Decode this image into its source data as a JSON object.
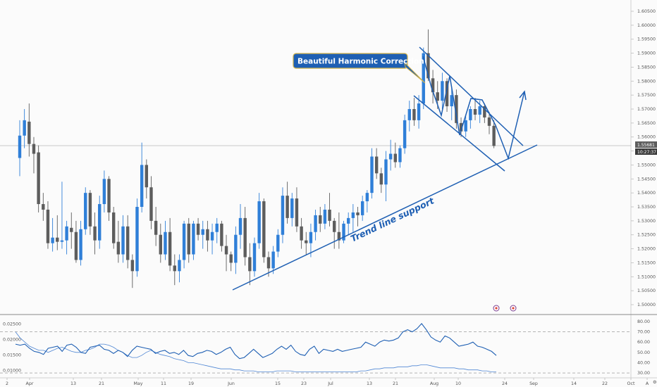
{
  "chart_data": {
    "type": "candlestick",
    "price_axis": {
      "ticks": [
        "1.60500",
        "1.60000",
        "1.59500",
        "1.59000",
        "1.58500",
        "1.58000",
        "1.57500",
        "1.57000",
        "1.56500",
        "1.56000",
        "1.55500",
        "1.55000",
        "1.54500",
        "1.54000",
        "1.53500",
        "1.53000",
        "1.52500",
        "1.52000",
        "1.51500",
        "1.51000",
        "1.50500",
        "1.50000"
      ],
      "range": [
        1.4975,
        1.6075
      ]
    },
    "current_price": {
      "value": 1.55681,
      "label": "1.55681",
      "countdown": "10:27:37"
    },
    "x_axis_labels": [
      "2",
      "Apr",
      "13",
      "21",
      "May",
      "11",
      "19",
      "Jun",
      "15",
      "23",
      "Jul",
      "13",
      "21",
      "Aug",
      "10",
      "24",
      "Sep",
      "14",
      "22",
      "Oct",
      "A"
    ],
    "candles": [
      {
        "o": 1.5525,
        "h": 1.566,
        "l": 1.546,
        "c": 1.5605
      },
      {
        "o": 1.5605,
        "h": 1.57,
        "l": 1.556,
        "c": 1.566
      },
      {
        "o": 1.5655,
        "h": 1.572,
        "l": 1.553,
        "c": 1.5575
      },
      {
        "o": 1.5575,
        "h": 1.56,
        "l": 1.547,
        "c": 1.554
      },
      {
        "o": 1.5545,
        "h": 1.557,
        "l": 1.533,
        "c": 1.536
      },
      {
        "o": 1.536,
        "h": 1.54,
        "l": 1.53,
        "c": 1.534
      },
      {
        "o": 1.534,
        "h": 1.537,
        "l": 1.52,
        "c": 1.522
      },
      {
        "o": 1.522,
        "h": 1.531,
        "l": 1.519,
        "c": 1.524
      },
      {
        "o": 1.524,
        "h": 1.532,
        "l": 1.5195,
        "c": 1.5225
      },
      {
        "o": 1.5225,
        "h": 1.544,
        "l": 1.52,
        "c": 1.523
      },
      {
        "o": 1.523,
        "h": 1.53,
        "l": 1.518,
        "c": 1.528
      },
      {
        "o": 1.5275,
        "h": 1.533,
        "l": 1.52,
        "c": 1.526
      },
      {
        "o": 1.526,
        "h": 1.53,
        "l": 1.515,
        "c": 1.516
      },
      {
        "o": 1.516,
        "h": 1.53,
        "l": 1.514,
        "c": 1.527
      },
      {
        "o": 1.527,
        "h": 1.542,
        "l": 1.525,
        "c": 1.54
      },
      {
        "o": 1.54,
        "h": 1.541,
        "l": 1.525,
        "c": 1.528
      },
      {
        "o": 1.528,
        "h": 1.533,
        "l": 1.518,
        "c": 1.523
      },
      {
        "o": 1.523,
        "h": 1.539,
        "l": 1.52,
        "c": 1.536
      },
      {
        "o": 1.536,
        "h": 1.548,
        "l": 1.533,
        "c": 1.545
      },
      {
        "o": 1.545,
        "h": 1.546,
        "l": 1.53,
        "c": 1.533
      },
      {
        "o": 1.533,
        "h": 1.535,
        "l": 1.52,
        "c": 1.522
      },
      {
        "o": 1.5225,
        "h": 1.53,
        "l": 1.515,
        "c": 1.518
      },
      {
        "o": 1.518,
        "h": 1.532,
        "l": 1.515,
        "c": 1.528
      },
      {
        "o": 1.528,
        "h": 1.532,
        "l": 1.513,
        "c": 1.516
      },
      {
        "o": 1.516,
        "h": 1.518,
        "l": 1.506,
        "c": 1.512
      },
      {
        "o": 1.512,
        "h": 1.538,
        "l": 1.51,
        "c": 1.535
      },
      {
        "o": 1.535,
        "h": 1.558,
        "l": 1.533,
        "c": 1.55
      },
      {
        "o": 1.55,
        "h": 1.552,
        "l": 1.538,
        "c": 1.542
      },
      {
        "o": 1.542,
        "h": 1.546,
        "l": 1.527,
        "c": 1.53
      },
      {
        "o": 1.53,
        "h": 1.535,
        "l": 1.521,
        "c": 1.525
      },
      {
        "o": 1.525,
        "h": 1.529,
        "l": 1.515,
        "c": 1.518
      },
      {
        "o": 1.518,
        "h": 1.53,
        "l": 1.516,
        "c": 1.526
      },
      {
        "o": 1.526,
        "h": 1.531,
        "l": 1.512,
        "c": 1.514
      },
      {
        "o": 1.514,
        "h": 1.518,
        "l": 1.507,
        "c": 1.512
      },
      {
        "o": 1.512,
        "h": 1.518,
        "l": 1.508,
        "c": 1.516
      },
      {
        "o": 1.516,
        "h": 1.53,
        "l": 1.513,
        "c": 1.529
      },
      {
        "o": 1.529,
        "h": 1.531,
        "l": 1.515,
        "c": 1.518
      },
      {
        "o": 1.518,
        "h": 1.53,
        "l": 1.516,
        "c": 1.529
      },
      {
        "o": 1.529,
        "h": 1.531,
        "l": 1.523,
        "c": 1.525
      },
      {
        "o": 1.525,
        "h": 1.53,
        "l": 1.52,
        "c": 1.527
      },
      {
        "o": 1.527,
        "h": 1.53,
        "l": 1.519,
        "c": 1.523
      },
      {
        "o": 1.523,
        "h": 1.529,
        "l": 1.518,
        "c": 1.526
      },
      {
        "o": 1.526,
        "h": 1.531,
        "l": 1.522,
        "c": 1.529
      },
      {
        "o": 1.529,
        "h": 1.53,
        "l": 1.519,
        "c": 1.521
      },
      {
        "o": 1.521,
        "h": 1.525,
        "l": 1.512,
        "c": 1.518
      },
      {
        "o": 1.518,
        "h": 1.519,
        "l": 1.512,
        "c": 1.515
      },
      {
        "o": 1.515,
        "h": 1.528,
        "l": 1.511,
        "c": 1.525
      },
      {
        "o": 1.525,
        "h": 1.536,
        "l": 1.52,
        "c": 1.531
      },
      {
        "o": 1.531,
        "h": 1.535,
        "l": 1.514,
        "c": 1.517
      },
      {
        "o": 1.517,
        "h": 1.522,
        "l": 1.507,
        "c": 1.512
      },
      {
        "o": 1.512,
        "h": 1.524,
        "l": 1.51,
        "c": 1.522
      },
      {
        "o": 1.522,
        "h": 1.54,
        "l": 1.52,
        "c": 1.537
      },
      {
        "o": 1.537,
        "h": 1.538,
        "l": 1.515,
        "c": 1.517
      },
      {
        "o": 1.517,
        "h": 1.519,
        "l": 1.51,
        "c": 1.513
      },
      {
        "o": 1.513,
        "h": 1.521,
        "l": 1.511,
        "c": 1.519
      },
      {
        "o": 1.519,
        "h": 1.527,
        "l": 1.517,
        "c": 1.525
      },
      {
        "o": 1.525,
        "h": 1.542,
        "l": 1.522,
        "c": 1.539
      },
      {
        "o": 1.539,
        "h": 1.544,
        "l": 1.529,
        "c": 1.531
      },
      {
        "o": 1.531,
        "h": 1.54,
        "l": 1.528,
        "c": 1.538
      },
      {
        "o": 1.538,
        "h": 1.542,
        "l": 1.526,
        "c": 1.528
      },
      {
        "o": 1.528,
        "h": 1.531,
        "l": 1.52,
        "c": 1.523
      },
      {
        "o": 1.523,
        "h": 1.526,
        "l": 1.518,
        "c": 1.522
      },
      {
        "o": 1.522,
        "h": 1.529,
        "l": 1.517,
        "c": 1.526
      },
      {
        "o": 1.526,
        "h": 1.534,
        "l": 1.523,
        "c": 1.532
      },
      {
        "o": 1.532,
        "h": 1.535,
        "l": 1.526,
        "c": 1.529
      },
      {
        "o": 1.529,
        "h": 1.536,
        "l": 1.527,
        "c": 1.534
      },
      {
        "o": 1.534,
        "h": 1.54,
        "l": 1.528,
        "c": 1.53
      },
      {
        "o": 1.53,
        "h": 1.531,
        "l": 1.52,
        "c": 1.526
      },
      {
        "o": 1.526,
        "h": 1.533,
        "l": 1.52,
        "c": 1.523
      },
      {
        "o": 1.523,
        "h": 1.53,
        "l": 1.522,
        "c": 1.529
      },
      {
        "o": 1.529,
        "h": 1.533,
        "l": 1.525,
        "c": 1.531
      },
      {
        "o": 1.531,
        "h": 1.536,
        "l": 1.526,
        "c": 1.533
      },
      {
        "o": 1.533,
        "h": 1.535,
        "l": 1.528,
        "c": 1.532
      },
      {
        "o": 1.532,
        "h": 1.539,
        "l": 1.53,
        "c": 1.537
      },
      {
        "o": 1.537,
        "h": 1.541,
        "l": 1.533,
        "c": 1.54
      },
      {
        "o": 1.54,
        "h": 1.556,
        "l": 1.538,
        "c": 1.553
      },
      {
        "o": 1.553,
        "h": 1.556,
        "l": 1.545,
        "c": 1.547
      },
      {
        "o": 1.547,
        "h": 1.549,
        "l": 1.54,
        "c": 1.543
      },
      {
        "o": 1.543,
        "h": 1.555,
        "l": 1.537,
        "c": 1.552
      },
      {
        "o": 1.552,
        "h": 1.559,
        "l": 1.548,
        "c": 1.554
      },
      {
        "o": 1.554,
        "h": 1.558,
        "l": 1.549,
        "c": 1.551
      },
      {
        "o": 1.551,
        "h": 1.557,
        "l": 1.549,
        "c": 1.556
      },
      {
        "o": 1.556,
        "h": 1.568,
        "l": 1.554,
        "c": 1.566
      },
      {
        "o": 1.566,
        "h": 1.573,
        "l": 1.562,
        "c": 1.57
      },
      {
        "o": 1.57,
        "h": 1.574,
        "l": 1.564,
        "c": 1.566
      },
      {
        "o": 1.566,
        "h": 1.575,
        "l": 1.563,
        "c": 1.572
      },
      {
        "o": 1.572,
        "h": 1.592,
        "l": 1.57,
        "c": 1.59
      },
      {
        "o": 1.59,
        "h": 1.5985,
        "l": 1.58,
        "c": 1.581
      },
      {
        "o": 1.581,
        "h": 1.584,
        "l": 1.572,
        "c": 1.576
      },
      {
        "o": 1.576,
        "h": 1.58,
        "l": 1.57,
        "c": 1.573
      },
      {
        "o": 1.573,
        "h": 1.583,
        "l": 1.57,
        "c": 1.58
      },
      {
        "o": 1.58,
        "h": 1.581,
        "l": 1.569,
        "c": 1.571
      },
      {
        "o": 1.571,
        "h": 1.578,
        "l": 1.566,
        "c": 1.575
      },
      {
        "o": 1.575,
        "h": 1.577,
        "l": 1.563,
        "c": 1.565
      },
      {
        "o": 1.565,
        "h": 1.567,
        "l": 1.56,
        "c": 1.562
      },
      {
        "o": 1.562,
        "h": 1.568,
        "l": 1.56,
        "c": 1.566
      },
      {
        "o": 1.566,
        "h": 1.571,
        "l": 1.563,
        "c": 1.57
      },
      {
        "o": 1.57,
        "h": 1.574,
        "l": 1.566,
        "c": 1.568
      },
      {
        "o": 1.568,
        "h": 1.573,
        "l": 1.565,
        "c": 1.571
      },
      {
        "o": 1.571,
        "h": 1.572,
        "l": 1.565,
        "c": 1.567
      },
      {
        "o": 1.567,
        "h": 1.569,
        "l": 1.561,
        "c": 1.564
      },
      {
        "o": 1.564,
        "h": 1.566,
        "l": 1.556,
        "c": 1.5568
      }
    ],
    "indicator": {
      "left_axis": {
        "ticks": [
          "0.02500",
          "0.02000",
          "0.01500",
          "0.01000"
        ],
        "range": [
          0.0085,
          0.0265
        ]
      },
      "right_axis": {
        "ticks": [
          "80.00",
          "70.00",
          "60.00",
          "50.00",
          "40.00",
          "30.00"
        ],
        "range": [
          28,
          82
        ]
      },
      "levels": [
        70,
        30
      ],
      "series": [
        {
          "values": [
            70,
            64,
            60,
            56,
            54,
            52,
            52,
            50,
            52,
            54,
            55,
            53,
            51,
            50,
            50,
            52,
            53,
            55,
            58,
            58,
            57,
            55,
            52,
            50,
            47,
            45,
            45,
            47,
            50,
            52,
            50,
            48,
            47,
            46,
            44,
            43,
            42,
            40,
            40,
            39,
            38,
            37,
            36,
            35,
            34,
            34,
            34,
            33,
            33,
            32,
            32,
            32,
            31,
            31,
            31,
            31,
            32,
            32,
            32,
            32,
            31,
            31,
            31,
            31,
            31,
            31,
            31,
            31,
            31,
            31,
            31,
            31,
            31,
            31,
            32,
            32,
            33,
            34,
            34,
            35,
            35,
            35,
            36,
            36,
            36,
            37,
            37,
            38,
            38,
            37,
            36,
            35,
            35,
            35,
            35,
            34,
            34,
            33,
            33,
            33,
            32,
            32,
            31,
            31
          ]
        },
        {
          "values": [
            58,
            57,
            58,
            54,
            51,
            50,
            48,
            54,
            55,
            56,
            51,
            57,
            58,
            55,
            50,
            49,
            55,
            56,
            57,
            53,
            52,
            49,
            52,
            50,
            46,
            52,
            56,
            55,
            54,
            53,
            49,
            51,
            52,
            49,
            50,
            48,
            52,
            47,
            46,
            49,
            50,
            52,
            51,
            48,
            50,
            53,
            55,
            48,
            44,
            45,
            49,
            53,
            49,
            45,
            47,
            49,
            53,
            56,
            53,
            57,
            51,
            48,
            47,
            53,
            56,
            49,
            53,
            52,
            51,
            53,
            51,
            52,
            53,
            54,
            55,
            60,
            58,
            56,
            60,
            62,
            61,
            62,
            64,
            70,
            72,
            70,
            73,
            78,
            72,
            65,
            62,
            60,
            66,
            64,
            60,
            56,
            57,
            58,
            60,
            56,
            55,
            53,
            51,
            47
          ]
        }
      ]
    }
  },
  "annotations": {
    "callout": "Beautiful Harmonic Correction",
    "trend_label": "Trend line support"
  },
  "colors": {
    "up": "#2f7fd8",
    "down": "#5d5d5d",
    "lines": "#1e5fb3",
    "callout_bg": "#1e5fb3",
    "callout_border": "#d4b44a",
    "price_tag_bg": "#5d5d5d",
    "countdown_bg": "#3a3a3a"
  }
}
